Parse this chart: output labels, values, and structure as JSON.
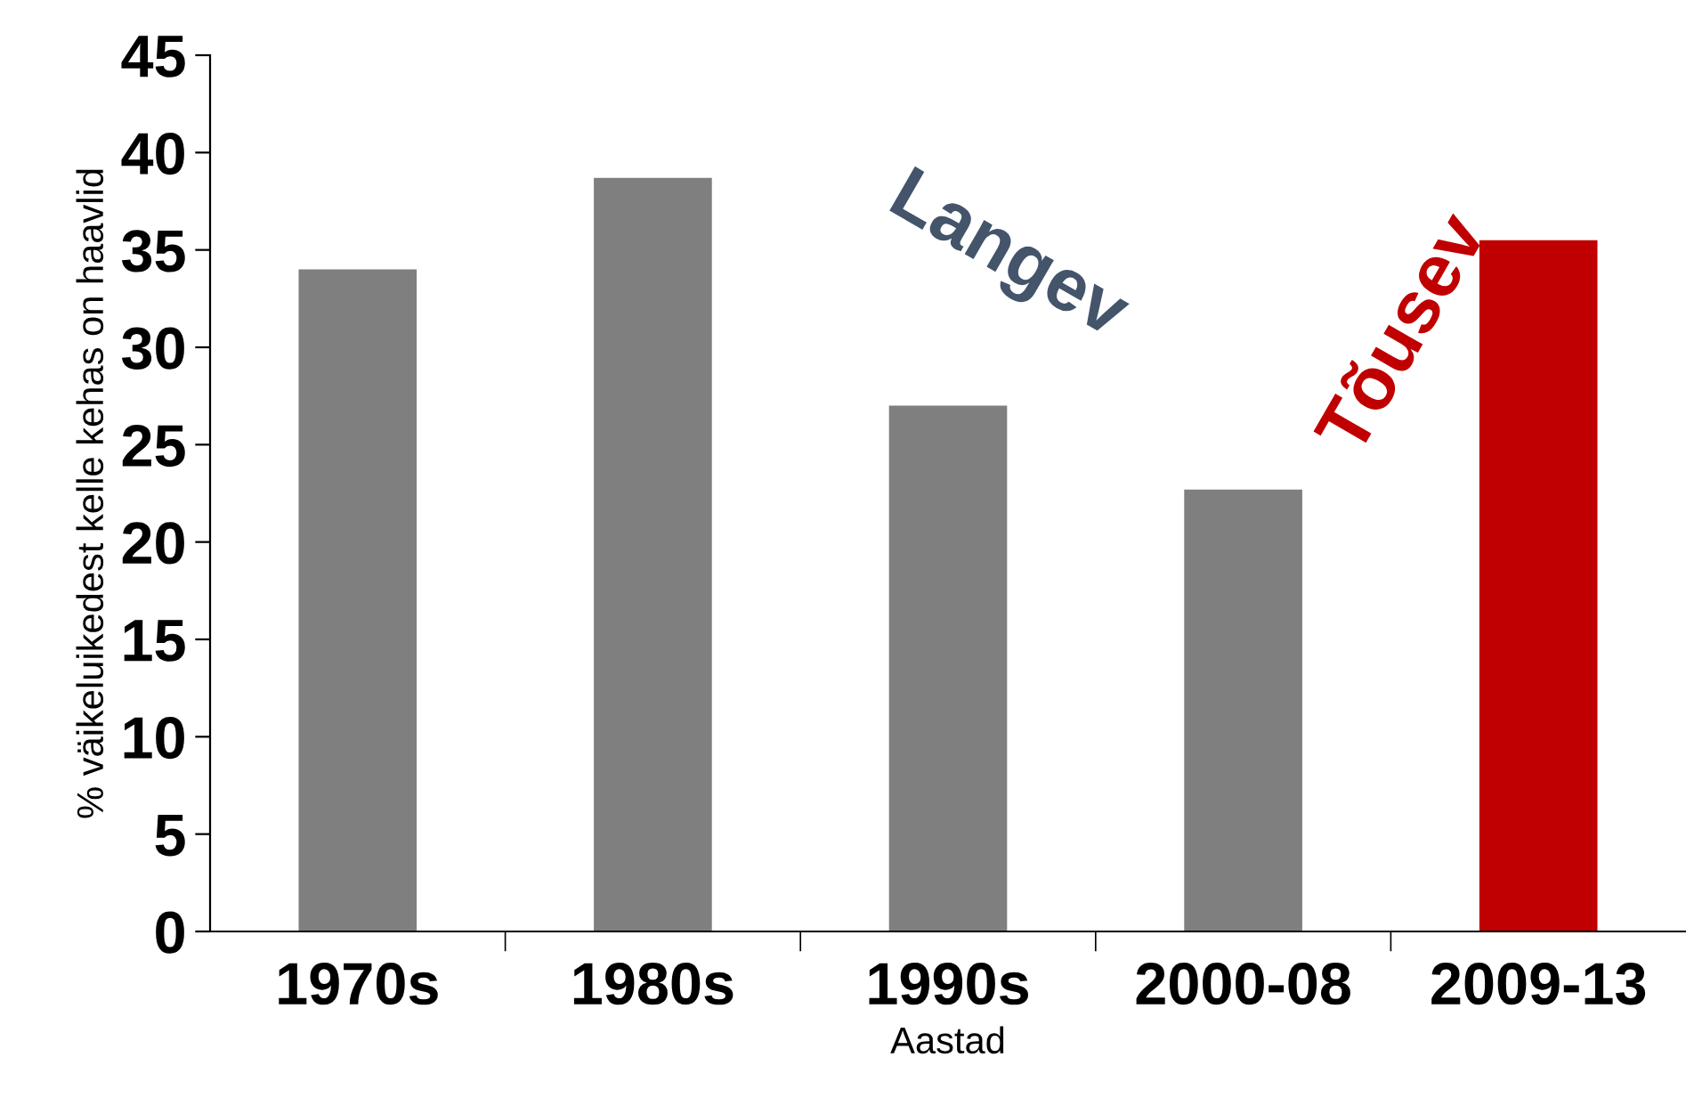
{
  "chart_data": {
    "type": "bar",
    "xlabel": "Aastad",
    "ylabel": "% väikeluikedest kelle kehas on haavlid",
    "categories": [
      "1970s",
      "1980s",
      "1990s",
      "2000-08",
      "2009-13"
    ],
    "values": [
      34.0,
      38.7,
      27.0,
      22.7,
      35.5
    ],
    "colors": [
      "#7f7f7f",
      "#7f7f7f",
      "#7f7f7f",
      "#7f7f7f",
      "#c00000"
    ],
    "ylim": [
      0,
      45
    ],
    "yticks": [
      0,
      5,
      10,
      15,
      20,
      25,
      30,
      35,
      40,
      45
    ],
    "annotations": [
      "Langev",
      "Tõusev"
    ],
    "grid": false,
    "legend": false
  }
}
